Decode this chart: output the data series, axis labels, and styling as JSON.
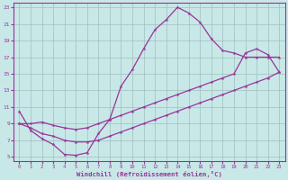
{
  "xlabel": "Windchill (Refroidissement éolien,°C)",
  "xlim": [
    -0.5,
    23.5
  ],
  "ylim": [
    4.5,
    23.5
  ],
  "xticks": [
    0,
    1,
    2,
    3,
    4,
    5,
    6,
    7,
    8,
    9,
    10,
    11,
    12,
    13,
    14,
    15,
    16,
    17,
    18,
    19,
    20,
    21,
    22,
    23
  ],
  "yticks": [
    5,
    7,
    9,
    11,
    13,
    15,
    17,
    19,
    21,
    23
  ],
  "bg_color": "#c8e8e8",
  "line_color": "#993399",
  "grid_color": "#9fbfbf",
  "curve_x": [
    0,
    1,
    2,
    3,
    4,
    5,
    6,
    7,
    8,
    9,
    10,
    11,
    12,
    13,
    14,
    15,
    16,
    17,
    18,
    19,
    20,
    21,
    22,
    23
  ],
  "curve_y": [
    10.5,
    8.2,
    7.2,
    6.5,
    5.3,
    5.2,
    5.5,
    7.8,
    9.5,
    13.5,
    15.5,
    18.0,
    20.3,
    21.5,
    23.0,
    22.3,
    21.2,
    19.2,
    17.8,
    17.5,
    17.0,
    17.0,
    17.0,
    17.0
  ],
  "mid_x": [
    0,
    1,
    2,
    3,
    4,
    5,
    6,
    7,
    8,
    9,
    10,
    11,
    12,
    13,
    14,
    15,
    16,
    17,
    18,
    19,
    20,
    21,
    22,
    23
  ],
  "mid_y": [
    9.0,
    9.0,
    9.2,
    8.8,
    8.5,
    8.3,
    8.5,
    9.0,
    9.5,
    10.0,
    10.5,
    11.0,
    11.5,
    12.0,
    12.5,
    13.0,
    13.5,
    14.0,
    14.5,
    15.0,
    17.5,
    18.0,
    17.3,
    15.2
  ],
  "low_x": [
    0,
    1,
    2,
    3,
    4,
    5,
    6,
    7,
    8,
    9,
    10,
    11,
    12,
    13,
    14,
    15,
    16,
    17,
    18,
    19,
    20,
    21,
    22,
    23
  ],
  "low_y": [
    9.0,
    8.5,
    7.8,
    7.5,
    7.0,
    6.8,
    6.8,
    7.0,
    7.5,
    8.0,
    8.5,
    9.0,
    9.5,
    10.0,
    10.5,
    11.0,
    11.5,
    12.0,
    12.5,
    13.0,
    13.5,
    14.0,
    14.5,
    15.2
  ]
}
